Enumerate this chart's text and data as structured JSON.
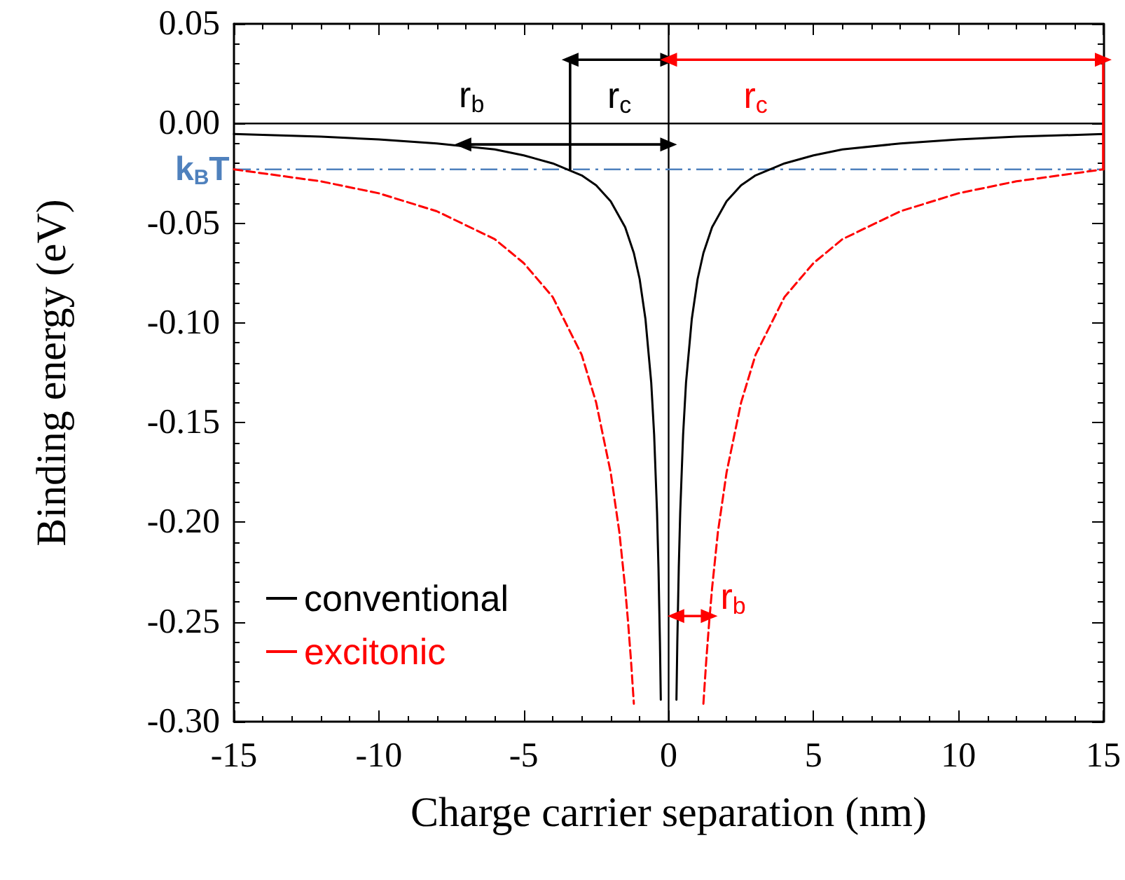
{
  "chart_data": {
    "type": "line",
    "xlabel": "Charge carrier separation (nm)",
    "ylabel": "Binding energy (eV)",
    "xlim": [
      -15,
      15
    ],
    "xticks": [
      -15,
      -10,
      -5,
      0,
      5,
      10,
      15
    ],
    "ylim": [
      -0.3,
      0.05
    ],
    "yticks": [
      {
        "value": 0.05,
        "label": "0.05"
      },
      {
        "value": 0,
        "label": "0.00"
      },
      {
        "value": -0.05,
        "label": "-0.05"
      },
      {
        "value": -0.1,
        "label": "-0.10"
      },
      {
        "value": -0.15,
        "label": "-0.15"
      },
      {
        "value": -0.2,
        "label": "-0.20"
      },
      {
        "value": -0.25,
        "label": "-0.25"
      },
      {
        "value": -0.3,
        "label": "-0.30"
      }
    ],
    "grid": false,
    "legend": "bottom left",
    "marker": "none",
    "series": [
      {
        "name": "conventional",
        "color": "#000000",
        "line_style": "solid",
        "x": [
          -15,
          -12,
          -10,
          -8,
          -6,
          -5,
          -4,
          -3,
          -2.5,
          -2,
          -1.5,
          -1.2,
          -1,
          -0.8,
          -0.6,
          -0.5,
          -0.4,
          -0.35,
          -0.3,
          -0.27,
          0,
          0.27,
          0.3,
          0.35,
          0.4,
          0.5,
          0.6,
          0.8,
          1,
          1.2,
          1.5,
          2,
          2.5,
          3,
          4,
          5,
          6,
          8,
          10,
          12,
          15
        ],
        "values": [
          -0.0053,
          -0.0066,
          -0.008,
          -0.01,
          -0.013,
          -0.016,
          -0.02,
          -0.026,
          -0.031,
          -0.039,
          -0.052,
          -0.065,
          -0.078,
          -0.098,
          -0.13,
          -0.156,
          -0.195,
          -0.223,
          -0.26,
          -0.289,
          null,
          -0.289,
          -0.26,
          -0.223,
          -0.195,
          -0.156,
          -0.13,
          -0.098,
          -0.078,
          -0.065,
          -0.052,
          -0.039,
          -0.031,
          -0.026,
          -0.02,
          -0.016,
          -0.013,
          -0.01,
          -0.008,
          -0.0066,
          -0.0053
        ]
      },
      {
        "name": "excitonic",
        "color": "#ff0000",
        "line_style": "dashed",
        "x": [
          -15,
          -12,
          -10,
          -8,
          -6,
          -5,
          -4,
          -3,
          -2.5,
          -2,
          -1.7,
          -1.5,
          -1.4,
          -1.3,
          -1.2,
          0,
          1.2,
          1.3,
          1.4,
          1.5,
          1.7,
          2,
          2.5,
          3,
          4,
          5,
          6,
          8,
          10,
          12,
          15
        ],
        "values": [
          -0.023,
          -0.029,
          -0.035,
          -0.044,
          -0.058,
          -0.07,
          -0.087,
          -0.116,
          -0.14,
          -0.175,
          -0.205,
          -0.233,
          -0.25,
          -0.269,
          -0.291,
          null,
          -0.291,
          -0.269,
          -0.25,
          -0.233,
          -0.205,
          -0.175,
          -0.14,
          -0.116,
          -0.087,
          -0.07,
          -0.058,
          -0.044,
          -0.035,
          -0.029,
          -0.023
        ]
      },
      {
        "color": "#000000",
        "marker": "triangle",
        "x": [
          0,
          -3.4
        ],
        "values": [
          0.032,
          0.032
        ]
      },
      {
        "color": "#000000",
        "marker": "none",
        "x": [
          -3.4,
          -3.4
        ],
        "values": [
          0.032,
          -0.023
        ]
      },
      {
        "color": "#000000",
        "marker": "triangle",
        "x": [
          0,
          -7.1
        ],
        "values": [
          -0.0105,
          -0.0105
        ]
      },
      {
        "color": "#ff0000",
        "marker": "triangle",
        "x": [
          0,
          15
        ],
        "values": [
          0.032,
          0.032
        ]
      },
      {
        "color": "#ff0000",
        "marker": "none",
        "x": [
          15,
          15
        ],
        "values": [
          0.032,
          -0.023
        ]
      },
      {
        "color": "#ff0000",
        "marker": "triangle",
        "x": [
          0.25,
          1.4
        ],
        "values": [
          -0.247,
          -0.247
        ]
      }
    ],
    "ref_lines": [
      {
        "axis": "y",
        "value": 0,
        "color": "#000000",
        "line_style": "solid"
      },
      {
        "axis": "x",
        "value": 0,
        "color": "#000000",
        "line_style": "solid"
      },
      {
        "axis": "y",
        "value": -0.023,
        "label": "k$_{B}$T",
        "color": "#4f81bd",
        "line_style": "dashed"
      }
    ],
    "annotations": [
      {
        "text": "r$_{b}$",
        "x": -6.8,
        "y": -0.0105
      },
      {
        "text": "r$_{c}$",
        "x": -1.7,
        "y": 0.032
      },
      {
        "text": "r$_{c}$",
        "x": 3,
        "y": 0.032
      },
      {
        "text": "r$_{b}$",
        "x": 1.4,
        "y": -0.247
      }
    ]
  }
}
